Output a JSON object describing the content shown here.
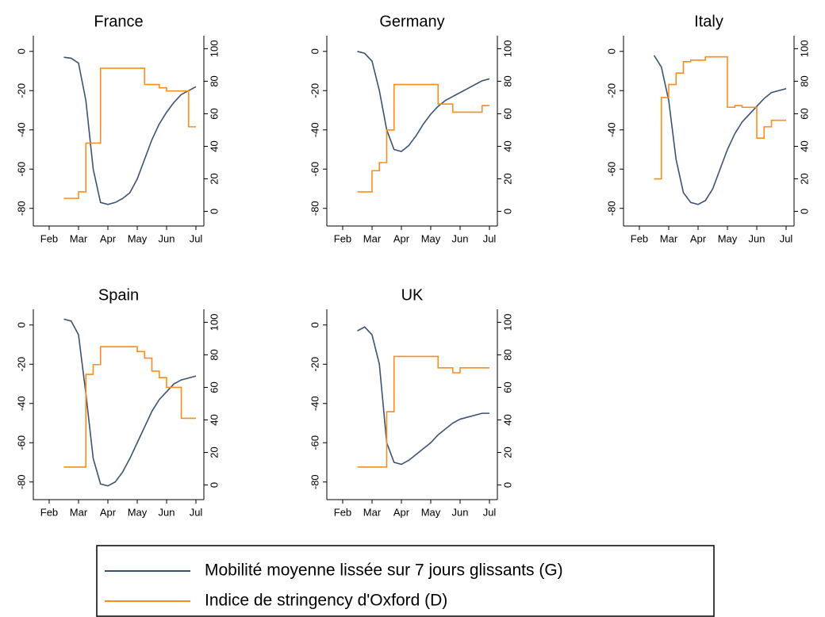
{
  "chart_data": [
    {
      "type": "line",
      "title": "France",
      "x": [
        2.5,
        2.75,
        3,
        3.25,
        3.5,
        3.75,
        4,
        4.25,
        4.5,
        4.75,
        5,
        5.25,
        5.5,
        5.75,
        6,
        6.25,
        6.5,
        6.75,
        7
      ],
      "series": [
        {
          "name": "Mobilité moyenne lissée sur 7 jours glissants (G)",
          "color": "#3b5373",
          "values": [
            -3,
            -3.5,
            -6,
            -25,
            -60,
            -77,
            -78,
            -77,
            -75,
            -72,
            -65,
            -55,
            -45,
            -37,
            -31,
            -26,
            -22,
            -20,
            -18
          ]
        },
        {
          "name": "Indice de stringency d'Oxford (D)",
          "color": "#ff8c1a",
          "axis": "y2",
          "step": true,
          "values": [
            8,
            8,
            12,
            42,
            42,
            88,
            88,
            88,
            88,
            88,
            88,
            78,
            78,
            76,
            74,
            74,
            74,
            52,
            52
          ]
        }
      ],
      "xlim": [
        1.46,
        7.27
      ],
      "xticks": [
        {
          "value": 2,
          "label": "Feb"
        },
        {
          "value": 3,
          "label": "Mar"
        },
        {
          "value": 4,
          "label": "Apr"
        },
        {
          "value": 5,
          "label": "May"
        },
        {
          "value": 6,
          "label": "Jun"
        },
        {
          "value": 7,
          "label": "Jul"
        }
      ],
      "ylim": [
        -89,
        8
      ],
      "yticks": [
        -80,
        -60,
        -40,
        -20,
        0
      ],
      "y2lim": [
        -9,
        108
      ],
      "y2ticks": [
        0,
        20,
        40,
        60,
        80,
        100
      ]
    },
    {
      "type": "line",
      "title": "Germany",
      "x": [
        2.5,
        2.75,
        3,
        3.25,
        3.5,
        3.75,
        4,
        4.25,
        4.5,
        4.75,
        5,
        5.25,
        5.5,
        5.75,
        6,
        6.25,
        6.5,
        6.75,
        7
      ],
      "series": [
        {
          "name": "Mobilité moyenne lissée sur 7 jours glissants (G)",
          "color": "#3b5373",
          "values": [
            0,
            -1,
            -5,
            -20,
            -40,
            -50,
            -51,
            -48,
            -43,
            -37,
            -32,
            -28,
            -25,
            -23,
            -21,
            -19,
            -17,
            -15,
            -14
          ]
        },
        {
          "name": "Indice de stringency d'Oxford (D)",
          "color": "#ff8c1a",
          "axis": "y2",
          "step": true,
          "values": [
            12,
            12,
            25,
            30,
            50,
            78,
            78,
            78,
            78,
            78,
            78,
            66,
            66,
            61,
            61,
            61,
            61,
            65,
            65
          ]
        }
      ],
      "xlim": [
        1.46,
        7.27
      ],
      "xticks": [
        {
          "value": 2,
          "label": "Feb"
        },
        {
          "value": 3,
          "label": "Mar"
        },
        {
          "value": 4,
          "label": "Apr"
        },
        {
          "value": 5,
          "label": "May"
        },
        {
          "value": 6,
          "label": "Jun"
        },
        {
          "value": 7,
          "label": "Jul"
        }
      ],
      "ylim": [
        -89,
        8
      ],
      "yticks": [
        -80,
        -60,
        -40,
        -20,
        0
      ],
      "y2lim": [
        -9,
        108
      ],
      "y2ticks": [
        0,
        20,
        40,
        60,
        80,
        100
      ]
    },
    {
      "type": "line",
      "title": "Italy",
      "x": [
        2.5,
        2.75,
        3,
        3.25,
        3.5,
        3.75,
        4,
        4.25,
        4.5,
        4.75,
        5,
        5.25,
        5.5,
        5.75,
        6,
        6.25,
        6.5,
        6.75,
        7
      ],
      "series": [
        {
          "name": "Mobilité moyenne lissée sur 7 jours glissants (G)",
          "color": "#3b5373",
          "values": [
            -2,
            -8,
            -25,
            -55,
            -72,
            -77,
            -78,
            -76,
            -70,
            -60,
            -50,
            -42,
            -36,
            -32,
            -28,
            -24,
            -21,
            -20,
            -19
          ]
        },
        {
          "name": "Indice de stringency d'Oxford (D)",
          "color": "#ff8c1a",
          "axis": "y2",
          "step": true,
          "values": [
            20,
            70,
            78,
            85,
            92,
            93,
            93,
            95,
            95,
            95,
            64,
            65,
            64,
            64,
            45,
            52,
            56,
            56,
            56
          ]
        }
      ],
      "xlim": [
        1.46,
        7.27
      ],
      "xticks": [
        {
          "value": 2,
          "label": "Feb"
        },
        {
          "value": 3,
          "label": "Mar"
        },
        {
          "value": 4,
          "label": "Apr"
        },
        {
          "value": 5,
          "label": "May"
        },
        {
          "value": 6,
          "label": "Jun"
        },
        {
          "value": 7,
          "label": "Jul"
        }
      ],
      "ylim": [
        -89,
        8
      ],
      "yticks": [
        -80,
        -60,
        -40,
        -20,
        0
      ],
      "y2lim": [
        -9,
        108
      ],
      "y2ticks": [
        0,
        20,
        40,
        60,
        80,
        100
      ]
    },
    {
      "type": "line",
      "title": "Spain",
      "x": [
        2.5,
        2.75,
        3,
        3.25,
        3.5,
        3.75,
        4,
        4.25,
        4.5,
        4.75,
        5,
        5.25,
        5.5,
        5.75,
        6,
        6.25,
        6.5,
        6.75,
        7
      ],
      "series": [
        {
          "name": "Mobilité moyenne lissée sur 7 jours glissants (G)",
          "color": "#3b5373",
          "values": [
            3,
            2,
            -5,
            -35,
            -68,
            -81,
            -82,
            -80,
            -75,
            -68,
            -60,
            -52,
            -44,
            -38,
            -34,
            -30,
            -28,
            -27,
            -26
          ]
        },
        {
          "name": "Indice de stringency d'Oxford (D)",
          "color": "#ff8c1a",
          "axis": "y2",
          "step": true,
          "values": [
            11,
            11,
            11,
            68,
            74,
            85,
            85,
            85,
            85,
            85,
            82,
            78,
            70,
            66,
            60,
            60,
            41,
            41,
            41
          ]
        }
      ],
      "xlim": [
        1.46,
        7.27
      ],
      "xticks": [
        {
          "value": 2,
          "label": "Feb"
        },
        {
          "value": 3,
          "label": "Mar"
        },
        {
          "value": 4,
          "label": "Apr"
        },
        {
          "value": 5,
          "label": "May"
        },
        {
          "value": 6,
          "label": "Jun"
        },
        {
          "value": 7,
          "label": "Jul"
        }
      ],
      "ylim": [
        -89,
        8
      ],
      "yticks": [
        -80,
        -60,
        -40,
        -20,
        0
      ],
      "y2lim": [
        -9,
        108
      ],
      "y2ticks": [
        0,
        20,
        40,
        60,
        80,
        100
      ]
    },
    {
      "type": "line",
      "title": "UK",
      "x": [
        2.5,
        2.75,
        3,
        3.25,
        3.5,
        3.75,
        4,
        4.25,
        4.5,
        4.75,
        5,
        5.25,
        5.5,
        5.75,
        6,
        6.25,
        6.5,
        6.75,
        7
      ],
      "series": [
        {
          "name": "Mobilité moyenne lissée sur 7 jours glissants (G)",
          "color": "#3b5373",
          "values": [
            -3,
            -1,
            -5,
            -20,
            -60,
            -70,
            -71,
            -69,
            -66,
            -63,
            -60,
            -56,
            -53,
            -50,
            -48,
            -47,
            -46,
            -45,
            -45
          ]
        },
        {
          "name": "Indice de stringency d'Oxford (D)",
          "color": "#ff8c1a",
          "axis": "y2",
          "step": true,
          "values": [
            11,
            11,
            11,
            11,
            45,
            79,
            79,
            79,
            79,
            79,
            79,
            72,
            72,
            69,
            72,
            72,
            72,
            72,
            72
          ]
        }
      ],
      "xlim": [
        1.46,
        7.27
      ],
      "xticks": [
        {
          "value": 2,
          "label": "Feb"
        },
        {
          "value": 3,
          "label": "Mar"
        },
        {
          "value": 4,
          "label": "Apr"
        },
        {
          "value": 5,
          "label": "May"
        },
        {
          "value": 6,
          "label": "Jun"
        },
        {
          "value": 7,
          "label": "Jul"
        }
      ],
      "ylim": [
        -89,
        8
      ],
      "yticks": [
        -80,
        -60,
        -40,
        -20,
        0
      ],
      "y2lim": [
        -9,
        108
      ],
      "y2ticks": [
        0,
        20,
        40,
        60,
        80,
        100
      ]
    }
  ]
}
